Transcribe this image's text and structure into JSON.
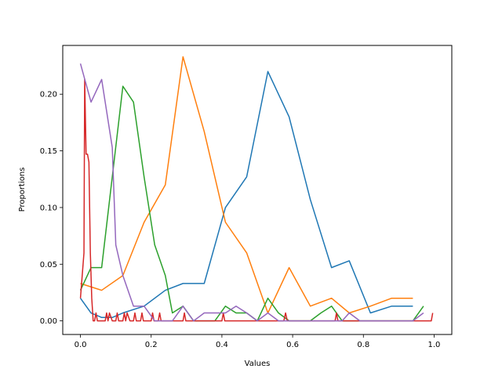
{
  "chart_data": {
    "type": "line",
    "title": "",
    "xlabel": "Values",
    "ylabel": "Proportions",
    "xlim": [
      -0.05,
      1.05
    ],
    "ylim": [
      -0.012,
      0.243
    ],
    "x_ticks": [
      0.0,
      0.2,
      0.4,
      0.6,
      0.8,
      1.0
    ],
    "x_tick_labels": [
      "0.0",
      "0.2",
      "0.4",
      "0.6",
      "0.8",
      "1.0"
    ],
    "y_ticks": [
      0.0,
      0.05,
      0.1,
      0.15,
      0.2
    ],
    "y_tick_labels": [
      "0.00",
      "0.05",
      "0.10",
      "0.15",
      "0.20"
    ],
    "grid": false,
    "legend": "none",
    "series": [
      {
        "color": "#1f77b4",
        "x": [
          0.0,
          0.03,
          0.06,
          0.09,
          0.12,
          0.18,
          0.24,
          0.29,
          0.35,
          0.41,
          0.47,
          0.53,
          0.59,
          0.65,
          0.71,
          0.76,
          0.82,
          0.88,
          0.94
        ],
        "y": [
          0.02,
          0.007,
          0.003,
          0.003,
          0.007,
          0.013,
          0.027,
          0.033,
          0.033,
          0.1,
          0.127,
          0.22,
          0.18,
          0.107,
          0.047,
          0.053,
          0.007,
          0.013,
          0.013
        ]
      },
      {
        "color": "#ff7f0e",
        "x": [
          0.0,
          0.06,
          0.12,
          0.18,
          0.24,
          0.29,
          0.35,
          0.41,
          0.47,
          0.53,
          0.59,
          0.65,
          0.71,
          0.76,
          0.82,
          0.88,
          0.94
        ],
        "y": [
          0.033,
          0.027,
          0.04,
          0.087,
          0.12,
          0.233,
          0.167,
          0.087,
          0.06,
          0.007,
          0.047,
          0.013,
          0.02,
          0.007,
          0.013,
          0.02,
          0.02
        ]
      },
      {
        "color": "#2ca02c",
        "x": [
          0.0,
          0.03,
          0.06,
          0.09,
          0.12,
          0.15,
          0.18,
          0.21,
          0.24,
          0.26,
          0.29,
          0.32,
          0.35,
          0.38,
          0.41,
          0.44,
          0.47,
          0.5,
          0.53,
          0.56,
          0.59,
          0.62,
          0.65,
          0.68,
          0.71,
          0.74,
          0.76,
          0.79,
          0.82,
          0.85,
          0.88,
          0.91,
          0.94,
          0.97
        ],
        "y": [
          0.027,
          0.047,
          0.047,
          0.127,
          0.207,
          0.193,
          0.127,
          0.067,
          0.04,
          0.007,
          0.013,
          0.0,
          0.0,
          0.0,
          0.013,
          0.007,
          0.007,
          0.0,
          0.02,
          0.007,
          0.0,
          0.0,
          0.0,
          0.007,
          0.013,
          0.0,
          0.0,
          0.0,
          0.0,
          0.0,
          0.0,
          0.0,
          0.0,
          0.013
        ]
      },
      {
        "color": "#d62728",
        "x": [
          0.0,
          0.01,
          0.012,
          0.016,
          0.02,
          0.024,
          0.028,
          0.032,
          0.036,
          0.04,
          0.044,
          0.048,
          0.052,
          0.06,
          0.07,
          0.074,
          0.078,
          0.082,
          0.09,
          0.1,
          0.104,
          0.108,
          0.12,
          0.124,
          0.128,
          0.132,
          0.14,
          0.15,
          0.154,
          0.158,
          0.17,
          0.174,
          0.178,
          0.19,
          0.2,
          0.204,
          0.208,
          0.22,
          0.224,
          0.228,
          0.24,
          0.25,
          0.27,
          0.28,
          0.29,
          0.294,
          0.298,
          0.31,
          0.33,
          0.36,
          0.38,
          0.4,
          0.404,
          0.408,
          0.42,
          0.45,
          0.48,
          0.52,
          0.55,
          0.575,
          0.58,
          0.585,
          0.6,
          0.64,
          0.68,
          0.72,
          0.724,
          0.728,
          0.74,
          0.78,
          0.82,
          0.86,
          0.9,
          0.94,
          0.98,
          0.992,
          0.996
        ],
        "y": [
          0.02,
          0.06,
          0.213,
          0.147,
          0.147,
          0.14,
          0.06,
          0.02,
          0.0,
          0.0,
          0.007,
          0.0,
          0.0,
          0.0,
          0.0,
          0.007,
          0.0,
          0.007,
          0.0,
          0.0,
          0.007,
          0.0,
          0.0,
          0.007,
          0.0,
          0.007,
          0.0,
          0.0,
          0.007,
          0.0,
          0.0,
          0.007,
          0.0,
          0.0,
          0.0,
          0.007,
          0.0,
          0.0,
          0.007,
          0.0,
          0.0,
          0.0,
          0.0,
          0.0,
          0.0,
          0.007,
          0.0,
          0.0,
          0.0,
          0.0,
          0.0,
          0.0,
          0.007,
          0.0,
          0.0,
          0.0,
          0.0,
          0.0,
          0.0,
          0.0,
          0.007,
          0.0,
          0.0,
          0.0,
          0.0,
          0.0,
          0.007,
          0.0,
          0.0,
          0.0,
          0.0,
          0.0,
          0.0,
          0.0,
          0.0,
          0.0,
          0.007
        ]
      },
      {
        "color": "#9467bd",
        "x": [
          0.0,
          0.03,
          0.06,
          0.09,
          0.1,
          0.12,
          0.15,
          0.18,
          0.21,
          0.24,
          0.26,
          0.29,
          0.32,
          0.35,
          0.38,
          0.41,
          0.44,
          0.47,
          0.5,
          0.53,
          0.56,
          0.59,
          0.62,
          0.65,
          0.68,
          0.71,
          0.74,
          0.76,
          0.79,
          0.82,
          0.85,
          0.88,
          0.91,
          0.94,
          0.97
        ],
        "y": [
          0.227,
          0.193,
          0.213,
          0.153,
          0.067,
          0.04,
          0.013,
          0.013,
          0.0,
          0.0,
          0.0,
          0.013,
          0.0,
          0.007,
          0.007,
          0.007,
          0.013,
          0.007,
          0.0,
          0.007,
          0.0,
          0.0,
          0.0,
          0.0,
          0.0,
          0.0,
          0.0,
          0.007,
          0.0,
          0.0,
          0.0,
          0.0,
          0.0,
          0.0,
          0.007
        ]
      }
    ]
  }
}
